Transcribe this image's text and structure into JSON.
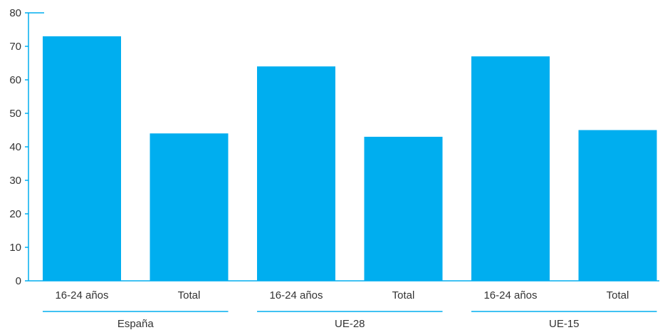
{
  "chart_data": {
    "type": "bar",
    "categories": [
      "16-24 años",
      "Total",
      "16-24 años",
      "Total",
      "16-24 años",
      "Total"
    ],
    "groups": [
      {
        "label": "España",
        "indices": [
          0,
          1
        ]
      },
      {
        "label": "UE-28",
        "indices": [
          2,
          3
        ]
      },
      {
        "label": "UE-15",
        "indices": [
          4,
          5
        ]
      }
    ],
    "values": [
      73,
      44,
      64,
      43,
      67,
      45
    ],
    "ylim": [
      0,
      80
    ],
    "yticks": [
      0,
      10,
      20,
      30,
      40,
      50,
      60,
      70,
      80
    ],
    "grid": false,
    "legend": "none",
    "bar_color": "#00AEEF",
    "axis_color": "#00AEEF"
  }
}
